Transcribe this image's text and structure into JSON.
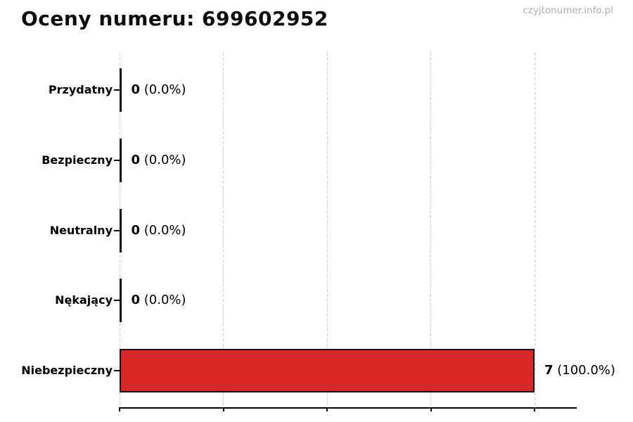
{
  "header": {
    "title": "Oceny numeru: 699602952",
    "watermark": "czyjtonumer.info.pl"
  },
  "chart_data": {
    "type": "bar",
    "orientation": "horizontal",
    "title": "Oceny numeru: 699602952",
    "categories": [
      "Przydatny",
      "Bezpieczny",
      "Neutralny",
      "Nękający",
      "Niebezpieczny"
    ],
    "values": [
      0,
      0,
      0,
      0,
      7
    ],
    "value_labels": [
      {
        "count": "0",
        "pct": "(0.0%)"
      },
      {
        "count": "0",
        "pct": "(0.0%)"
      },
      {
        "count": "0",
        "pct": "(0.0%)"
      },
      {
        "count": "0",
        "pct": "(0.0%)"
      },
      {
        "count": "7",
        "pct": "(100.0%)"
      }
    ],
    "total": 7,
    "x_max_tick": 7,
    "num_x_ticks": 5,
    "x_tick_labels_visible": false,
    "grid": "vertical-dashed",
    "legend": "none",
    "bar_color": "#d92727",
    "bar_edge_color": "#131313",
    "grid_color": "#cccccc",
    "axis_color": "#000000",
    "watermark_color": "#aeaeae"
  }
}
